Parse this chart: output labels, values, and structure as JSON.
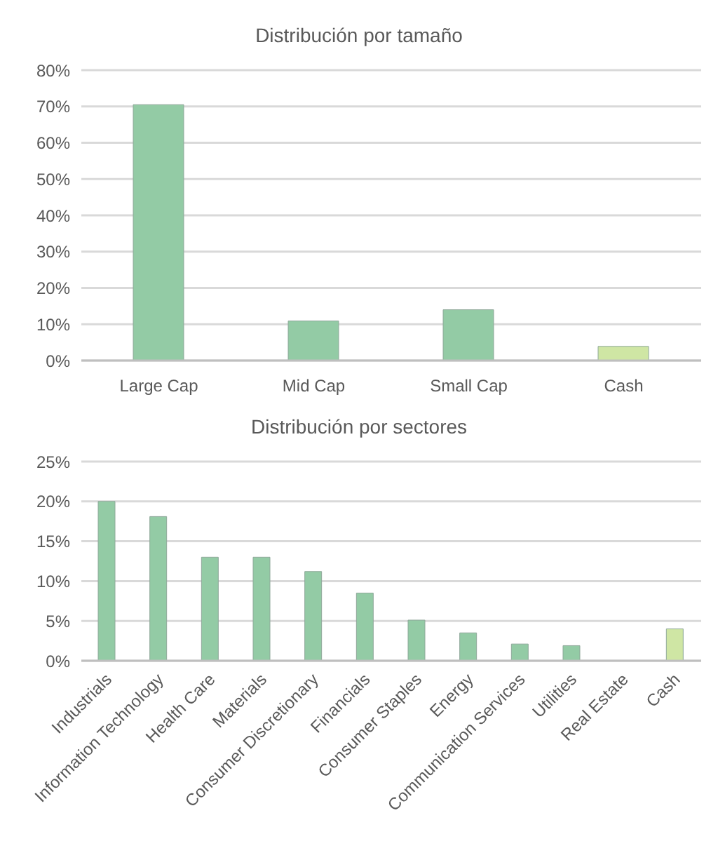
{
  "chart_data": [
    {
      "type": "bar",
      "title": "Distribución por tamaño",
      "categories": [
        "Large Cap",
        "Mid Cap",
        "Small Cap",
        "Cash"
      ],
      "values": [
        70.5,
        10.9,
        14,
        3.9
      ],
      "colors": [
        "#93cba5",
        "#93cba5",
        "#93cba5",
        "#cfe6a4"
      ],
      "ylim": [
        0,
        80
      ],
      "yticks": [
        {
          "value": 0,
          "label": "0%"
        },
        {
          "value": 10,
          "label": "10%"
        },
        {
          "value": 20,
          "label": "20%"
        },
        {
          "value": 30,
          "label": "30%"
        },
        {
          "value": 40,
          "label": "40%"
        },
        {
          "value": 50,
          "label": "50%"
        },
        {
          "value": 60,
          "label": "60%"
        },
        {
          "value": 70,
          "label": "70%"
        },
        {
          "value": 80,
          "label": "80%"
        }
      ],
      "grid": "y",
      "legend": false
    },
    {
      "type": "bar",
      "title": "Distribución por sectores",
      "categories": [
        "Industrials",
        "Information Technology",
        "Health Care",
        "Materials",
        "Consumer Discretionary",
        "Financials",
        "Consumer Staples",
        "Energy",
        "Communication Services",
        "Utilities",
        "Real Estate",
        "Cash"
      ],
      "values": [
        20,
        18.1,
        13,
        13,
        11.2,
        8.5,
        5.1,
        3.5,
        2.1,
        1.9,
        0,
        4
      ],
      "colors": [
        "#93cba5",
        "#93cba5",
        "#93cba5",
        "#93cba5",
        "#93cba5",
        "#93cba5",
        "#93cba5",
        "#93cba5",
        "#93cba5",
        "#93cba5",
        "#93cba5",
        "#cfe6a4"
      ],
      "ylim": [
        0,
        25
      ],
      "yticks": [
        {
          "value": 0,
          "label": "0%"
        },
        {
          "value": 5,
          "label": "5%"
        },
        {
          "value": 10,
          "label": "10%"
        },
        {
          "value": 15,
          "label": "15%"
        },
        {
          "value": 20,
          "label": "20%"
        },
        {
          "value": 25,
          "label": "25%"
        }
      ],
      "grid": "y",
      "legend": false
    }
  ]
}
